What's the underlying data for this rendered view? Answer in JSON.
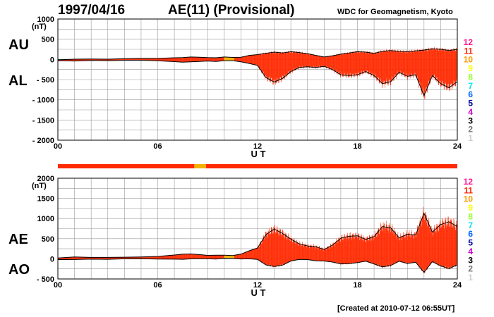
{
  "header": {
    "date": "1997/04/16",
    "title": "AE(11) (Provisional)",
    "org": "WDC for Geomagnetism, Kyoto"
  },
  "footer": "[Created at 2010-07-12 06:55UT]",
  "side_labels": {
    "au": "AU",
    "al": "AL",
    "ae": "AE",
    "ao": "AO"
  },
  "legend": {
    "items": [
      {
        "label": "12",
        "color": "#ff1493"
      },
      {
        "label": "11",
        "color": "#ff2400"
      },
      {
        "label": "10",
        "color": "#ff9900"
      },
      {
        "label": "9",
        "color": "#ffff00"
      },
      {
        "label": "8",
        "color": "#99ff33"
      },
      {
        "label": "7",
        "color": "#00e5ee"
      },
      {
        "label": "6",
        "color": "#0066ff"
      },
      {
        "label": "5",
        "color": "#000099"
      },
      {
        "label": "4",
        "color": "#cc00cc"
      },
      {
        "label": "3",
        "color": "#000000"
      },
      {
        "label": "2",
        "color": "#777777"
      },
      {
        "label": "1",
        "color": "#cccccc"
      }
    ]
  },
  "colors": {
    "fill": "#ff2a00",
    "fill_alt": "#f2b000",
    "outline": "#000000",
    "grid": "#999999"
  },
  "chart_data": [
    {
      "type": "area",
      "title": "AU / AL",
      "xlabel": "U T",
      "ylabel": "(nT)",
      "xlim": [
        0,
        24
      ],
      "ylim": [
        -2000,
        1000
      ],
      "xticks": [
        0,
        6,
        12,
        18,
        24
      ],
      "xtick_labels": [
        "00",
        "06",
        "12",
        "18",
        "24"
      ],
      "yticks": [
        1000,
        500,
        0,
        -500,
        -1000,
        -1500,
        -2000
      ],
      "ytick_labels": [
        "1000",
        "500",
        "0",
        "- 500",
        "- 1000",
        "- 1500",
        "- 2000"
      ],
      "grid": true,
      "x": [
        0,
        1,
        2,
        3,
        4,
        5,
        6,
        7,
        7.5,
        8,
        8.5,
        9,
        9.5,
        10,
        10.5,
        11,
        11.5,
        12,
        12.5,
        13,
        13.5,
        14,
        14.5,
        15,
        15.5,
        16,
        16.5,
        17,
        17.5,
        18,
        18.5,
        19,
        19.5,
        20,
        20.5,
        21,
        21.5,
        22,
        22.5,
        23,
        23.5,
        24
      ],
      "series": [
        {
          "name": "AU",
          "values": [
            -10,
            5,
            10,
            5,
            20,
            25,
            25,
            40,
            45,
            60,
            55,
            45,
            40,
            60,
            50,
            55,
            100,
            120,
            150,
            180,
            160,
            190,
            170,
            140,
            100,
            60,
            90,
            130,
            160,
            190,
            180,
            150,
            200,
            220,
            200,
            190,
            210,
            230,
            260,
            250,
            220,
            250
          ]
        },
        {
          "name": "AL",
          "values": [
            -30,
            -40,
            -25,
            -30,
            -20,
            -20,
            -35,
            -55,
            -70,
            -60,
            -50,
            -40,
            -50,
            -30,
            -30,
            -60,
            -100,
            -150,
            -450,
            -560,
            -470,
            -300,
            -200,
            -180,
            -200,
            -170,
            -250,
            -380,
            -400,
            -380,
            -300,
            -400,
            -600,
            -550,
            -320,
            -420,
            -380,
            -900,
            -400,
            -600,
            -700,
            -550
          ]
        }
      ],
      "highlight": {
        "x_from": 10.0,
        "x_to": 10.6
      }
    },
    {
      "type": "area",
      "title": "AE / AO",
      "xlabel": "U T",
      "ylabel": "(nT)",
      "xlim": [
        0,
        24
      ],
      "ylim": [
        -500,
        2000
      ],
      "xticks": [
        0,
        6,
        12,
        18,
        24
      ],
      "xtick_labels": [
        "00",
        "06",
        "12",
        "18",
        "24"
      ],
      "yticks": [
        2000,
        1500,
        1000,
        500,
        0,
        -500
      ],
      "ytick_labels": [
        "2000",
        "1500",
        "1000",
        "500",
        "0",
        "- 500"
      ],
      "grid": true,
      "x": [
        0,
        1,
        2,
        3,
        4,
        5,
        6,
        7,
        7.5,
        8,
        8.5,
        9,
        9.5,
        10,
        10.5,
        11,
        11.5,
        12,
        12.5,
        13,
        13.5,
        14,
        14.5,
        15,
        15.5,
        16,
        16.5,
        17,
        17.5,
        18,
        18.5,
        19,
        19.5,
        20,
        20.5,
        21,
        21.5,
        22,
        22.5,
        23,
        23.5,
        24
      ],
      "series": [
        {
          "name": "AE",
          "values": [
            20,
            45,
            35,
            35,
            40,
            45,
            60,
            95,
            115,
            120,
            105,
            85,
            90,
            90,
            80,
            115,
            200,
            270,
            600,
            740,
            630,
            490,
            370,
            320,
            300,
            230,
            340,
            510,
            560,
            570,
            480,
            550,
            800,
            770,
            520,
            610,
            590,
            1130,
            660,
            850,
            920,
            800
          ]
        },
        {
          "name": "AO",
          "values": [
            -20,
            -18,
            -8,
            -12,
            0,
            3,
            -5,
            -8,
            -12,
            0,
            3,
            3,
            -5,
            15,
            10,
            -3,
            0,
            -15,
            -150,
            -190,
            -155,
            -55,
            -15,
            -20,
            -50,
            -55,
            -80,
            -125,
            -120,
            -95,
            -60,
            -125,
            -200,
            -165,
            -60,
            -115,
            -85,
            -335,
            -70,
            -175,
            -240,
            -150
          ]
        }
      ],
      "highlight": {
        "x_from": 10.0,
        "x_to": 10.6
      }
    }
  ],
  "status_strip": {
    "segments": [
      {
        "from": 0,
        "to": 8.2,
        "color": "#ff2a00"
      },
      {
        "from": 8.2,
        "to": 8.9,
        "color": "#f2b000"
      },
      {
        "from": 8.9,
        "to": 24,
        "color": "#ff2a00"
      }
    ]
  }
}
